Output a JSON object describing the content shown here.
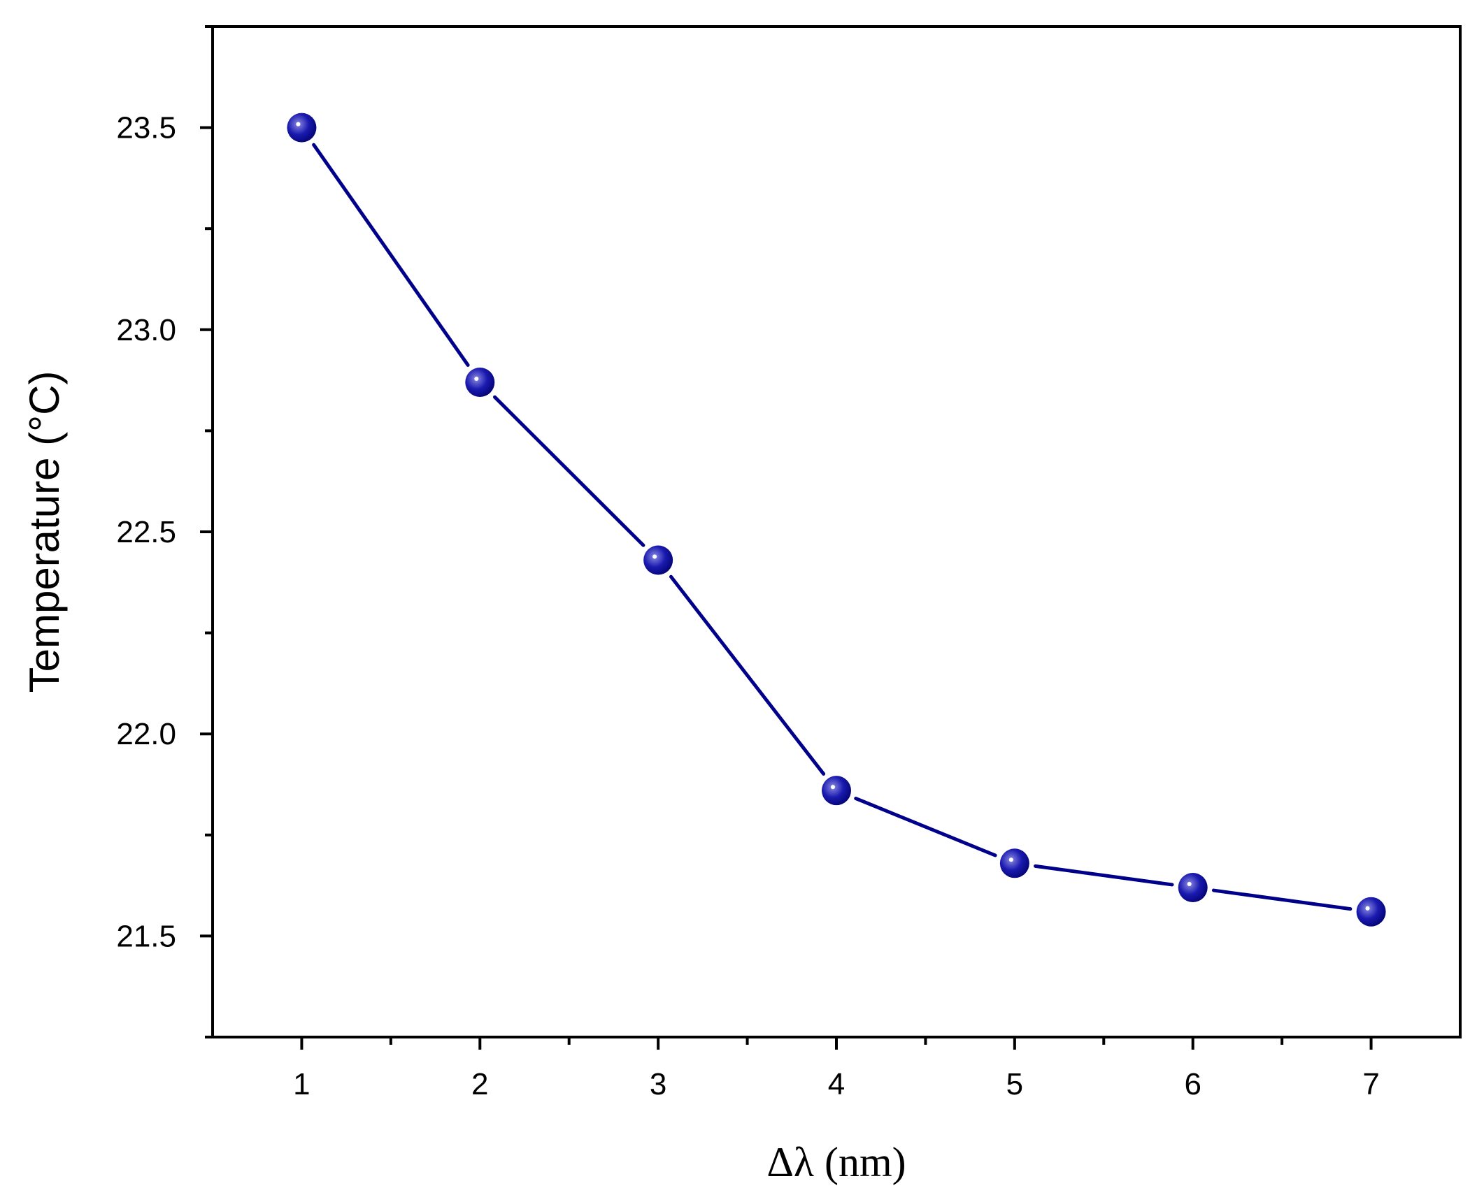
{
  "chart_data": {
    "type": "line",
    "xlabel": "Δλ (nm)",
    "ylabel": "Temperature (°C)",
    "xlim": [
      0.5,
      7.5
    ],
    "ylim": [
      21.25,
      23.75
    ],
    "x_ticks": [
      1,
      2,
      3,
      4,
      5,
      6,
      7
    ],
    "x_minor_ticks": [
      1.5,
      2.5,
      3.5,
      4.5,
      5.5,
      6.5
    ],
    "y_ticks": [
      "21.5",
      "22.0",
      "22.5",
      "23.0",
      "23.5"
    ],
    "y_minor_ticks": [
      21.25,
      21.75,
      22.25,
      22.75,
      23.25,
      23.75
    ],
    "grid": false,
    "series": [
      {
        "x": [
          1,
          2,
          3,
          4,
          5,
          6,
          7
        ],
        "values": [
          23.5,
          22.87,
          22.43,
          21.86,
          21.68,
          21.62,
          21.56
        ],
        "color": "#00008b",
        "marker": "sphere"
      }
    ]
  }
}
